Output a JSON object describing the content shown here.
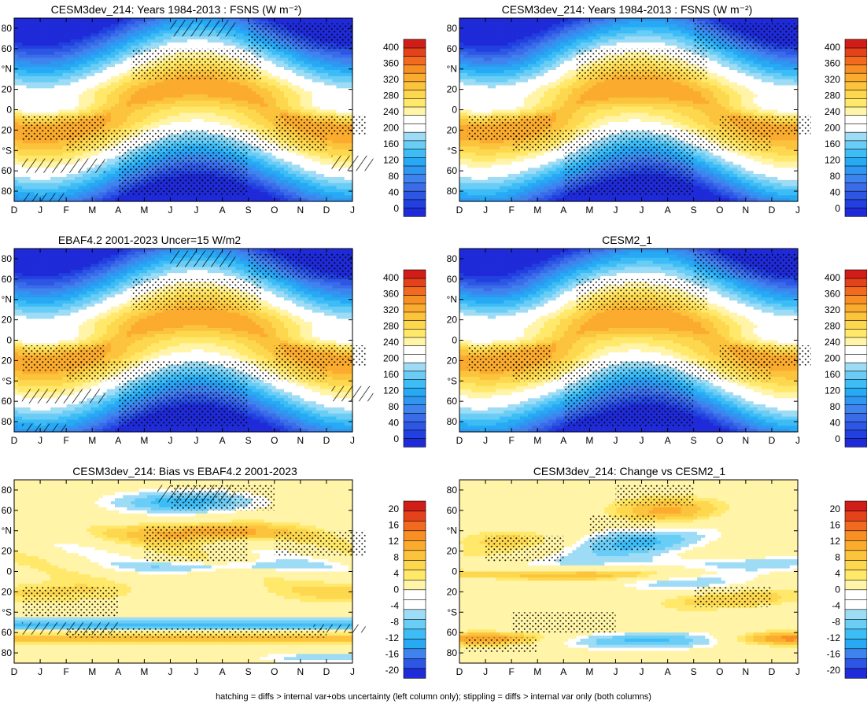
{
  "caption": "hatching = diffs > internal var+obs uncertainty (left column only); stippling = diffs > internal var only (both columns)",
  "fsns_colors": [
    "#1f2ad8",
    "#2240e0",
    "#2d56e4",
    "#3a6cea",
    "#3f83ee",
    "#2f97f1",
    "#27a9f4",
    "#3dbcf6",
    "#69cdf6",
    "#9edcf5",
    "#ffffff",
    "#ffffff",
    "#fff4a8",
    "#ffe86a",
    "#fdd84f",
    "#fcc33d",
    "#fbab2e",
    "#f88f25",
    "#f16a1f",
    "#e4421b",
    "#d01d17"
  ],
  "bias_colors": [
    "#1f2ad8",
    "#2d56e4",
    "#3f83ee",
    "#27a9f4",
    "#3dbcf6",
    "#69cdf6",
    "#9edcf5",
    "#ffffff",
    "#ffffff",
    "#fff4a8",
    "#ffe86a",
    "#fdd84f",
    "#fcc33d",
    "#fbab2e",
    "#f88f25",
    "#f16a1f",
    "#e4421b",
    "#d01d17"
  ],
  "chart_data": [
    {
      "type": "heatmap",
      "title": "CESM3dev_214: Years 1984-2013 : FSNS (W m⁻²)",
      "field": "fsns",
      "x": [
        "D",
        "J",
        "F",
        "M",
        "A",
        "M",
        "J",
        "J",
        "A",
        "S",
        "O",
        "N",
        "D",
        "J"
      ],
      "y_ticks": [
        "80",
        "60",
        "°N",
        "20",
        "0",
        "20",
        "°S",
        "60",
        "80"
      ],
      "ylim": [
        -90,
        90
      ],
      "colorbar_labels": [
        "400",
        "360",
        "320",
        "280",
        "240",
        "200",
        "160",
        "120",
        "80",
        "40",
        "0"
      ],
      "colorbar_range": [
        -20,
        420
      ],
      "hatching": true
    },
    {
      "type": "heatmap",
      "title": "CESM3dev_214: Years 1984-2013 : FSNS (W m⁻²)",
      "field": "fsns",
      "x": [
        "D",
        "J",
        "F",
        "M",
        "A",
        "M",
        "J",
        "J",
        "A",
        "S",
        "O",
        "N",
        "D",
        "J"
      ],
      "y_ticks": [
        "80",
        "60",
        "°N",
        "20",
        "0",
        "20",
        "°S",
        "60",
        "80"
      ],
      "ylim": [
        -90,
        90
      ],
      "colorbar_labels": [
        "400",
        "360",
        "320",
        "280",
        "240",
        "200",
        "160",
        "120",
        "80",
        "40",
        "0"
      ],
      "colorbar_range": [
        -20,
        420
      ],
      "hatching": false
    },
    {
      "type": "heatmap",
      "title": "EBAF4.2 2001-2023 Uncer=15 W/m2",
      "field": "fsns",
      "x": [
        "D",
        "J",
        "F",
        "M",
        "A",
        "M",
        "J",
        "J",
        "A",
        "S",
        "O",
        "N",
        "D",
        "J"
      ],
      "y_ticks": [
        "80",
        "60",
        "°N",
        "20",
        "0",
        "20",
        "°S",
        "60",
        "80"
      ],
      "ylim": [
        -90,
        90
      ],
      "colorbar_labels": [
        "400",
        "360",
        "320",
        "280",
        "240",
        "200",
        "160",
        "120",
        "80",
        "40",
        "0"
      ],
      "colorbar_range": [
        -20,
        420
      ],
      "hatching": true
    },
    {
      "type": "heatmap",
      "title": "CESM2_1",
      "field": "fsns",
      "x": [
        "D",
        "J",
        "F",
        "M",
        "A",
        "M",
        "J",
        "J",
        "A",
        "S",
        "O",
        "N",
        "D",
        "J"
      ],
      "y_ticks": [
        "80",
        "60",
        "°N",
        "20",
        "0",
        "20",
        "°S",
        "60",
        "80"
      ],
      "ylim": [
        -90,
        90
      ],
      "colorbar_labels": [
        "400",
        "360",
        "320",
        "280",
        "240",
        "200",
        "160",
        "120",
        "80",
        "40",
        "0"
      ],
      "colorbar_range": [
        -20,
        420
      ],
      "hatching": false
    },
    {
      "type": "heatmap",
      "title": "CESM3dev_214: Bias vs EBAF4.2 2001-2023",
      "field": "bias",
      "x": [
        "D",
        "J",
        "F",
        "M",
        "A",
        "M",
        "J",
        "J",
        "A",
        "S",
        "O",
        "N",
        "D",
        "J"
      ],
      "y_ticks": [
        "80",
        "60",
        "°N",
        "20",
        "0",
        "20",
        "°S",
        "60",
        "80"
      ],
      "ylim": [
        -90,
        90
      ],
      "colorbar_labels": [
        "20",
        "16",
        "12",
        "8",
        "4",
        "0",
        "-4",
        "-8",
        "-12",
        "-16",
        "-20"
      ],
      "colorbar_range": [
        -22,
        22
      ],
      "hatching": true
    },
    {
      "type": "heatmap",
      "title": "CESM3dev_214: Change vs CESM2_1",
      "field": "change",
      "x": [
        "D",
        "J",
        "F",
        "M",
        "A",
        "M",
        "J",
        "J",
        "A",
        "S",
        "O",
        "N",
        "D",
        "J"
      ],
      "y_ticks": [
        "80",
        "60",
        "°N",
        "20",
        "0",
        "20",
        "°S",
        "60",
        "80"
      ],
      "ylim": [
        -90,
        90
      ],
      "colorbar_labels": [
        "20",
        "16",
        "12",
        "8",
        "4",
        "0",
        "-4",
        "-8",
        "-12",
        "-16",
        "-20"
      ],
      "colorbar_range": [
        -22,
        22
      ],
      "hatching": false
    }
  ]
}
